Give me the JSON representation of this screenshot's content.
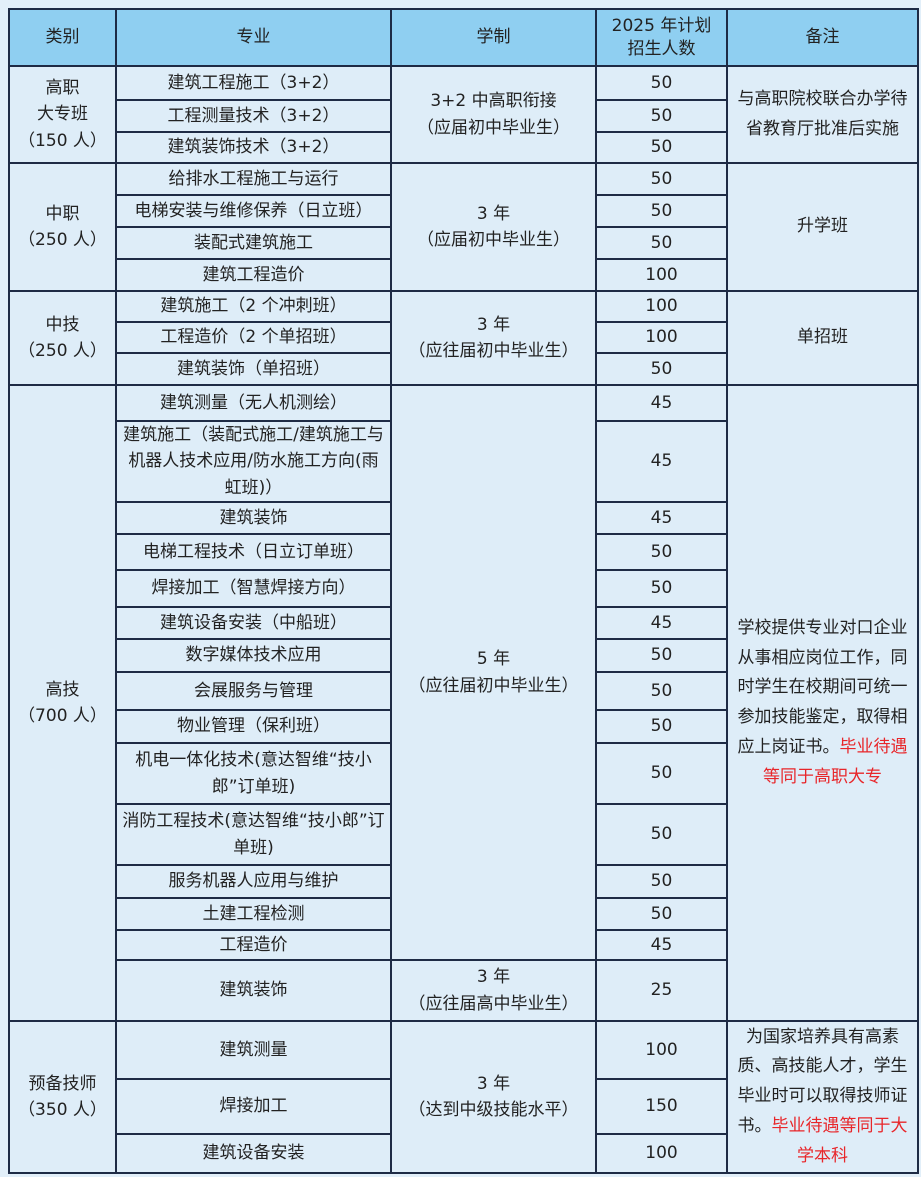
{
  "header": {
    "category": "类别",
    "major": "专业",
    "duration": "学制",
    "plan": "2025 年计划\n招生人数",
    "note": "备注"
  },
  "groups": [
    {
      "category": "高职\n大专班\n（150 人）",
      "rows": [
        {
          "major": "建筑工程施工（3+2）",
          "count": "50"
        },
        {
          "major": "工程测量技术（3+2）",
          "count": "50"
        },
        {
          "major": "建筑装饰技术（3+2）",
          "count": "50"
        }
      ],
      "durations": [
        {
          "text": "3+2 中高职衔接\n（应届初中毕业生）",
          "span": 3
        }
      ],
      "note": {
        "text": "与高职院校联合办学待省教育厅批准后实施",
        "red": ""
      }
    },
    {
      "category": "中职\n（250 人）",
      "rows": [
        {
          "major": "给排水工程施工与运行",
          "count": "50"
        },
        {
          "major": "电梯安装与维修保养（日立班）",
          "count": "50"
        },
        {
          "major": "装配式建筑施工",
          "count": "50"
        },
        {
          "major": "建筑工程造价",
          "count": "100"
        }
      ],
      "durations": [
        {
          "text": "3 年\n（应届初中毕业生）",
          "span": 4
        }
      ],
      "note": {
        "text": "升学班",
        "red": ""
      }
    },
    {
      "category": "中技\n（250 人）",
      "rows": [
        {
          "major": "建筑施工（2 个冲刺班）",
          "count": "100"
        },
        {
          "major": "工程造价（2 个单招班）",
          "count": "100"
        },
        {
          "major": "建筑装饰（单招班）",
          "count": "50"
        }
      ],
      "durations": [
        {
          "text": "3 年\n（应往届初中毕业生）",
          "span": 3
        }
      ],
      "note": {
        "text": "单招班",
        "red": ""
      }
    },
    {
      "category": "高技\n（700 人）",
      "rows": [
        {
          "major": "建筑测量（无人机测绘）",
          "count": "45"
        },
        {
          "major": "建筑施工（装配式施工/建筑施工与机器人技术应用/防水施工方向(雨虹班)）",
          "count": "45"
        },
        {
          "major": "建筑装饰",
          "count": "45"
        },
        {
          "major": "电梯工程技术（日立订单班）",
          "count": "50"
        },
        {
          "major": "焊接加工（智慧焊接方向）",
          "count": "50"
        },
        {
          "major": "建筑设备安装（中船班）",
          "count": "45"
        },
        {
          "major": "数字媒体技术应用",
          "count": "50"
        },
        {
          "major": "会展服务与管理",
          "count": "50"
        },
        {
          "major": "物业管理（保利班）",
          "count": "50"
        },
        {
          "major": "机电一体化技术(意达智维“技小郎”订单班)",
          "count": "50"
        },
        {
          "major": "消防工程技术(意达智维“技小郎”订单班)",
          "count": "50"
        },
        {
          "major": "服务机器人应用与维护",
          "count": "50"
        },
        {
          "major": "土建工程检测",
          "count": "50"
        },
        {
          "major": "工程造价",
          "count": "45"
        },
        {
          "major": "建筑装饰",
          "count": "25"
        }
      ],
      "durations": [
        {
          "text": "5 年\n（应往届初中毕业生）",
          "span": 14
        },
        {
          "text": "3 年\n（应往届高中毕业生）",
          "span": 1
        }
      ],
      "note": {
        "text": "学校提供专业对口企业从事相应岗位工作，同时学生在校期间可统一参加技能鉴定，取得相应上岗证书。",
        "red": "毕业待遇等同于高职大专"
      }
    },
    {
      "category": "预备技师\n（350 人）",
      "rows": [
        {
          "major": "建筑测量",
          "count": "100"
        },
        {
          "major": "焊接加工",
          "count": "150"
        },
        {
          "major": "建筑设备安装",
          "count": "100"
        }
      ],
      "durations": [
        {
          "text": "3 年\n（达到中级技能水平）",
          "span": 3
        }
      ],
      "note": {
        "text": "为国家培养具有高素质、高技能人才，学生毕业时可以取得技师证书。",
        "red": "毕业待遇等同于大学本科"
      }
    }
  ]
}
